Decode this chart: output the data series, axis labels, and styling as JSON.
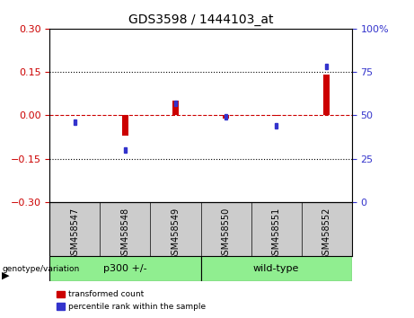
{
  "title": "GDS3598 / 1444103_at",
  "categories": [
    "GSM458547",
    "GSM458548",
    "GSM458549",
    "GSM458550",
    "GSM458551",
    "GSM458552"
  ],
  "red_values": [
    0.002,
    -0.07,
    0.05,
    -0.012,
    -0.003,
    0.14
  ],
  "blue_values": [
    46,
    30,
    57,
    49,
    44,
    78
  ],
  "groups": [
    {
      "label": "p300 +/-",
      "start": 0,
      "end": 2,
      "color": "#90EE90"
    },
    {
      "label": "wild-type",
      "start": 3,
      "end": 5,
      "color": "#90EE90"
    }
  ],
  "ylim_left": [
    -0.3,
    0.3
  ],
  "ylim_right": [
    0,
    100
  ],
  "yticks_left": [
    -0.3,
    -0.15,
    0,
    0.15,
    0.3
  ],
  "yticks_right": [
    0,
    25,
    50,
    75,
    100
  ],
  "ytick_labels_right": [
    "0",
    "25",
    "50",
    "75",
    "100%"
  ],
  "hlines_dotted": [
    0.15,
    -0.15
  ],
  "red_color": "#CC0000",
  "blue_color": "#3333CC",
  "dashed_zero_color": "#CC0000",
  "background_plot": "#FFFFFF",
  "background_xtick": "#CCCCCC",
  "red_bar_width": 0.12,
  "blue_square_size": 0.06,
  "legend_items": [
    {
      "label": "transformed count",
      "color": "#CC0000"
    },
    {
      "label": "percentile rank within the sample",
      "color": "#3333CC"
    }
  ]
}
